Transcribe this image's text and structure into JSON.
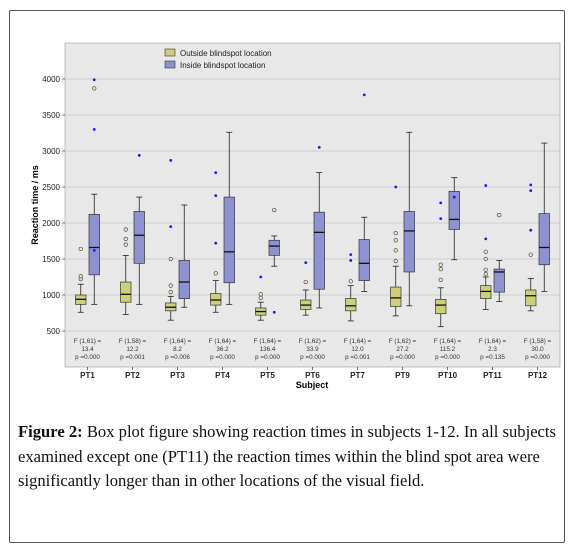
{
  "caption": {
    "label": "Figure 2:",
    "text": " Box plot figure showing reaction times in subjects 1-12. In all subjects examined except one (PT11) the reaction times within the blind spot area were significantly longer than in other locations of the visual field."
  },
  "colors": {
    "outside": "#cfcf7a",
    "inside": "#8e92d0",
    "outlier_circle": "#e8e8c8",
    "extreme_star": "#1a1aee",
    "gridline": "#c8c8c8",
    "plot_bg": "#e8e8e8"
  },
  "chart_data": {
    "type": "box",
    "xlabel": "Subject",
    "ylabel": "Reaction time / ms",
    "ylim": [
      0,
      4500
    ],
    "yticks": [
      500,
      1000,
      1500,
      2000,
      2500,
      3000,
      3500,
      4000
    ],
    "grid": true,
    "legend_position": "top-center",
    "categories": [
      "PT1",
      "PT2",
      "PT3",
      "PT4",
      "PT5",
      "PT6",
      "PT7",
      "PT9",
      "PT10",
      "PT11",
      "PT12"
    ],
    "series": [
      {
        "name": "Outside blindspot location",
        "boxes": [
          {
            "whisker_low": 760,
            "q1": 870,
            "median": 940,
            "q3": 1000,
            "whisker_high": 1150,
            "outliers": [
              1220,
              1260,
              1640
            ],
            "extremes": []
          },
          {
            "whisker_low": 730,
            "q1": 900,
            "median": 1010,
            "q3": 1180,
            "whisker_high": 1550,
            "outliers": [
              1700,
              1780,
              1910
            ],
            "extremes": []
          },
          {
            "whisker_low": 650,
            "q1": 780,
            "median": 830,
            "q3": 890,
            "whisker_high": 980,
            "outliers": [
              1040,
              1130,
              1500
            ],
            "extremes": [
              1950,
              2870
            ]
          },
          {
            "whisker_low": 760,
            "q1": 860,
            "median": 930,
            "q3": 1020,
            "whisker_high": 1200,
            "outliers": [
              1300
            ],
            "extremes": [
              1720,
              2380,
              2700
            ]
          },
          {
            "whisker_low": 650,
            "q1": 720,
            "median": 770,
            "q3": 820,
            "whisker_high": 900,
            "outliers": [
              960,
              1010
            ],
            "extremes": [
              1250
            ]
          },
          {
            "whisker_low": 720,
            "q1": 800,
            "median": 860,
            "q3": 930,
            "whisker_high": 1070,
            "outliers": [
              1180
            ],
            "extremes": [
              1450
            ]
          },
          {
            "whisker_low": 640,
            "q1": 780,
            "median": 850,
            "q3": 950,
            "whisker_high": 1130,
            "outliers": [
              1190
            ],
            "extremes": [
              1480,
              1560
            ]
          },
          {
            "whisker_low": 710,
            "q1": 840,
            "median": 960,
            "q3": 1110,
            "whisker_high": 1400,
            "outliers": [
              1470,
              1620,
              1760,
              1860
            ],
            "extremes": [
              2500
            ]
          },
          {
            "whisker_low": 560,
            "q1": 740,
            "median": 860,
            "q3": 940,
            "whisker_high": 1100,
            "outliers": [
              1210,
              1360,
              1420
            ],
            "extremes": [
              2060,
              2280
            ]
          },
          {
            "whisker_low": 800,
            "q1": 950,
            "median": 1050,
            "q3": 1130,
            "whisker_high": 1250,
            "outliers": [
              1290,
              1350,
              1500,
              1600
            ],
            "extremes": [
              1780,
              2520
            ]
          },
          {
            "whisker_low": 780,
            "q1": 850,
            "median": 990,
            "q3": 1070,
            "whisker_high": 1230,
            "outliers": [
              1560
            ],
            "extremes": [
              1900,
              2450,
              2530
            ]
          }
        ]
      },
      {
        "name": "Inside blindspot location",
        "boxes": [
          {
            "whisker_low": 870,
            "q1": 1280,
            "median": 1660,
            "q3": 2120,
            "whisker_high": 2400,
            "outliers": [
              3870
            ],
            "extremes": [
              1620,
              3300,
              3990
            ]
          },
          {
            "whisker_low": 870,
            "q1": 1440,
            "median": 1830,
            "q3": 2160,
            "whisker_high": 2360,
            "outliers": [],
            "extremes": [
              2940
            ]
          },
          {
            "whisker_low": 830,
            "q1": 950,
            "median": 1180,
            "q3": 1480,
            "whisker_high": 2250,
            "outliers": [],
            "extremes": []
          },
          {
            "whisker_low": 870,
            "q1": 1170,
            "median": 1600,
            "q3": 2360,
            "whisker_high": 3260,
            "outliers": [],
            "extremes": []
          },
          {
            "whisker_low": 1400,
            "q1": 1550,
            "median": 1680,
            "q3": 1760,
            "whisker_high": 1820,
            "outliers": [
              2180
            ],
            "extremes": [
              760
            ]
          },
          {
            "whisker_low": 820,
            "q1": 1080,
            "median": 1870,
            "q3": 2150,
            "whisker_high": 2700,
            "outliers": [],
            "extremes": [
              3050
            ]
          },
          {
            "whisker_low": 1050,
            "q1": 1200,
            "median": 1440,
            "q3": 1770,
            "whisker_high": 2080,
            "outliers": [],
            "extremes": [
              3780
            ]
          },
          {
            "whisker_low": 850,
            "q1": 1320,
            "median": 1890,
            "q3": 2160,
            "whisker_high": 3260,
            "outliers": [],
            "extremes": []
          },
          {
            "whisker_low": 1490,
            "q1": 1910,
            "median": 2050,
            "q3": 2440,
            "whisker_high": 2630,
            "outliers": [],
            "extremes": [
              2360
            ]
          },
          {
            "whisker_low": 910,
            "q1": 1040,
            "median": 1320,
            "q3": 1360,
            "whisker_high": 1480,
            "outliers": [
              2110
            ],
            "extremes": []
          },
          {
            "whisker_low": 1050,
            "q1": 1420,
            "median": 1660,
            "q3": 2130,
            "whisker_high": 3110,
            "outliers": [],
            "extremes": []
          }
        ]
      }
    ],
    "annotations": [
      {
        "line1": "F (1,61) =",
        "line2": "13.4",
        "line3": "p =0.000"
      },
      {
        "line1": "F (1,58) =",
        "line2": "12.2",
        "line3": "p =0.001"
      },
      {
        "line1": "F (1,64) =",
        "line2": "8.2",
        "line3": "p =0.006"
      },
      {
        "line1": "F (1,64) =",
        "line2": "36.2",
        "line3": "p =0.000"
      },
      {
        "line1": "F (1,64) =",
        "line2": "136.4",
        "line3": "p =0.000"
      },
      {
        "line1": "F (1,62) =",
        "line2": "33.9",
        "line3": "p =0.000"
      },
      {
        "line1": "F (1,64) =",
        "line2": "12.0",
        "line3": "p =0.001"
      },
      {
        "line1": "F (1,62) =",
        "line2": "27.2",
        "line3": "p =0.000"
      },
      {
        "line1": "F (1,64) =",
        "line2": "115.2",
        "line3": "p =0.000"
      },
      {
        "line1": "F (1,64) =",
        "line2": "2.3",
        "line3": "p =0.135"
      },
      {
        "line1": "F (1,58) =",
        "line2": "30.0",
        "line3": "p =0.000"
      }
    ]
  }
}
